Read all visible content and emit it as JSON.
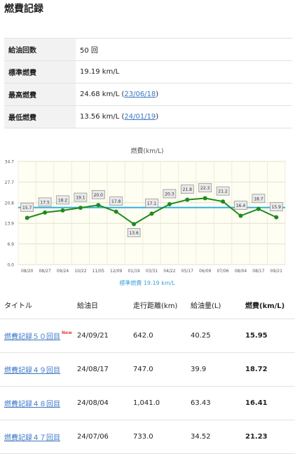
{
  "page_title": "燃費記録",
  "summary": {
    "refuel_count": {
      "label": "給油回数",
      "value": "50 回"
    },
    "standard": {
      "label": "標準燃費",
      "value": "19.19 km/L"
    },
    "best": {
      "label": "最高燃費",
      "value": "24.68 km/L (",
      "date": "23/06/18",
      "close": ")"
    },
    "worst": {
      "label": "最低燃費",
      "value": "13.56 km/L (",
      "date": "24/01/19",
      "close": ")"
    }
  },
  "chart_data": {
    "type": "line",
    "title": "燃費(km/L)",
    "x": [
      "08/20",
      "08/27",
      "09/24",
      "10/22",
      "11/05",
      "12/09",
      "01/19",
      "03/31",
      "04/22",
      "05/17",
      "06/09",
      "07/06",
      "08/04",
      "08/17",
      "09/21"
    ],
    "series": [
      {
        "values": [
          15.7,
          17.5,
          18.2,
          19.1,
          20.0,
          17.8,
          13.6,
          17.1,
          20.3,
          21.8,
          22.3,
          21.2,
          16.4,
          18.7,
          15.9
        ],
        "color": "#1e8a1e"
      }
    ],
    "reference_line": {
      "value": 19.19,
      "label": "標準燃費 19.19 km/L",
      "color": "#36b0e0"
    },
    "yticks": [
      "0.0",
      "6.9",
      "13.9",
      "20.8",
      "27.7",
      "34.7"
    ],
    "ylim": [
      0,
      34.7
    ],
    "grid": true
  },
  "table": {
    "headers": [
      "タイトル",
      "給油日",
      "走行距離(km)",
      "給油量(L)",
      "燃費(km/L)"
    ],
    "new_badge": "New",
    "rows": [
      {
        "title": "燃費記録５０回目",
        "date": "24/09/21",
        "distance": "642.0",
        "amount": "40.25",
        "fuel": "15.95",
        "is_new": true
      },
      {
        "title": "燃費記録４９回目",
        "date": "24/08/17",
        "distance": "747.0",
        "amount": "39.9",
        "fuel": "18.72",
        "is_new": false
      },
      {
        "title": "燃費記録４８回目",
        "date": "24/08/04",
        "distance": "1,041.0",
        "amount": "63.43",
        "fuel": "16.41",
        "is_new": false
      },
      {
        "title": "燃費記録４７回目",
        "date": "24/07/06",
        "distance": "733.0",
        "amount": "34.52",
        "fuel": "21.23",
        "is_new": false
      }
    ]
  }
}
